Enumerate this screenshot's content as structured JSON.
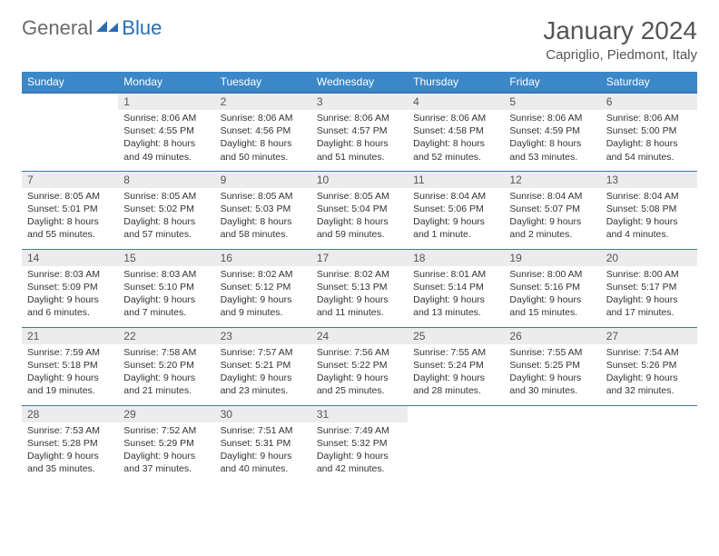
{
  "logo": {
    "general": "General",
    "blue": "Blue"
  },
  "header": {
    "title": "January 2024",
    "location": "Capriglio, Piedmont, Italy"
  },
  "colors": {
    "header_bg": "#3b87c8",
    "header_text": "#ffffff",
    "border": "#3b78b5",
    "daynum_bg": "#ececec",
    "text": "#333333",
    "logo_gray": "#6b6b6b",
    "logo_blue": "#2a6db3"
  },
  "weekdays": [
    "Sunday",
    "Monday",
    "Tuesday",
    "Wednesday",
    "Thursday",
    "Friday",
    "Saturday"
  ],
  "weeks": [
    [
      null,
      {
        "n": "1",
        "sr": "8:06 AM",
        "ss": "4:55 PM",
        "dl": "8 hours and 49 minutes."
      },
      {
        "n": "2",
        "sr": "8:06 AM",
        "ss": "4:56 PM",
        "dl": "8 hours and 50 minutes."
      },
      {
        "n": "3",
        "sr": "8:06 AM",
        "ss": "4:57 PM",
        "dl": "8 hours and 51 minutes."
      },
      {
        "n": "4",
        "sr": "8:06 AM",
        "ss": "4:58 PM",
        "dl": "8 hours and 52 minutes."
      },
      {
        "n": "5",
        "sr": "8:06 AM",
        "ss": "4:59 PM",
        "dl": "8 hours and 53 minutes."
      },
      {
        "n": "6",
        "sr": "8:06 AM",
        "ss": "5:00 PM",
        "dl": "8 hours and 54 minutes."
      }
    ],
    [
      {
        "n": "7",
        "sr": "8:05 AM",
        "ss": "5:01 PM",
        "dl": "8 hours and 55 minutes."
      },
      {
        "n": "8",
        "sr": "8:05 AM",
        "ss": "5:02 PM",
        "dl": "8 hours and 57 minutes."
      },
      {
        "n": "9",
        "sr": "8:05 AM",
        "ss": "5:03 PM",
        "dl": "8 hours and 58 minutes."
      },
      {
        "n": "10",
        "sr": "8:05 AM",
        "ss": "5:04 PM",
        "dl": "8 hours and 59 minutes."
      },
      {
        "n": "11",
        "sr": "8:04 AM",
        "ss": "5:06 PM",
        "dl": "9 hours and 1 minute."
      },
      {
        "n": "12",
        "sr": "8:04 AM",
        "ss": "5:07 PM",
        "dl": "9 hours and 2 minutes."
      },
      {
        "n": "13",
        "sr": "8:04 AM",
        "ss": "5:08 PM",
        "dl": "9 hours and 4 minutes."
      }
    ],
    [
      {
        "n": "14",
        "sr": "8:03 AM",
        "ss": "5:09 PM",
        "dl": "9 hours and 6 minutes."
      },
      {
        "n": "15",
        "sr": "8:03 AM",
        "ss": "5:10 PM",
        "dl": "9 hours and 7 minutes."
      },
      {
        "n": "16",
        "sr": "8:02 AM",
        "ss": "5:12 PM",
        "dl": "9 hours and 9 minutes."
      },
      {
        "n": "17",
        "sr": "8:02 AM",
        "ss": "5:13 PM",
        "dl": "9 hours and 11 minutes."
      },
      {
        "n": "18",
        "sr": "8:01 AM",
        "ss": "5:14 PM",
        "dl": "9 hours and 13 minutes."
      },
      {
        "n": "19",
        "sr": "8:00 AM",
        "ss": "5:16 PM",
        "dl": "9 hours and 15 minutes."
      },
      {
        "n": "20",
        "sr": "8:00 AM",
        "ss": "5:17 PM",
        "dl": "9 hours and 17 minutes."
      }
    ],
    [
      {
        "n": "21",
        "sr": "7:59 AM",
        "ss": "5:18 PM",
        "dl": "9 hours and 19 minutes."
      },
      {
        "n": "22",
        "sr": "7:58 AM",
        "ss": "5:20 PM",
        "dl": "9 hours and 21 minutes."
      },
      {
        "n": "23",
        "sr": "7:57 AM",
        "ss": "5:21 PM",
        "dl": "9 hours and 23 minutes."
      },
      {
        "n": "24",
        "sr": "7:56 AM",
        "ss": "5:22 PM",
        "dl": "9 hours and 25 minutes."
      },
      {
        "n": "25",
        "sr": "7:55 AM",
        "ss": "5:24 PM",
        "dl": "9 hours and 28 minutes."
      },
      {
        "n": "26",
        "sr": "7:55 AM",
        "ss": "5:25 PM",
        "dl": "9 hours and 30 minutes."
      },
      {
        "n": "27",
        "sr": "7:54 AM",
        "ss": "5:26 PM",
        "dl": "9 hours and 32 minutes."
      }
    ],
    [
      {
        "n": "28",
        "sr": "7:53 AM",
        "ss": "5:28 PM",
        "dl": "9 hours and 35 minutes."
      },
      {
        "n": "29",
        "sr": "7:52 AM",
        "ss": "5:29 PM",
        "dl": "9 hours and 37 minutes."
      },
      {
        "n": "30",
        "sr": "7:51 AM",
        "ss": "5:31 PM",
        "dl": "9 hours and 40 minutes."
      },
      {
        "n": "31",
        "sr": "7:49 AM",
        "ss": "5:32 PM",
        "dl": "9 hours and 42 minutes."
      },
      null,
      null,
      null
    ]
  ],
  "labels": {
    "sunrise": "Sunrise:",
    "sunset": "Sunset:",
    "daylight": "Daylight:"
  }
}
